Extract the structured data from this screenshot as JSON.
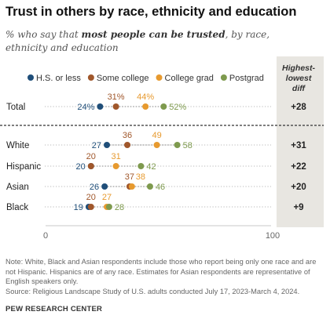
{
  "title": "Trust in others by race, ethnicity and education",
  "subtitle_pre": "% who say that ",
  "subtitle_bold": "most people can be trusted",
  "subtitle_post": ", by race, ethnicity and education",
  "diff_header": [
    "Highest-",
    "lowest",
    "diff"
  ],
  "colors": {
    "hs": "#1f4e79",
    "some_college": "#a0572b",
    "college_grad": "#e79a2f",
    "postgrad": "#7e9a4e",
    "diff_panel": "#e8e6e1",
    "dots": "#b8b8b8"
  },
  "chart_data": {
    "type": "scatter",
    "title": "Trust in others by race, ethnicity and education",
    "xlim": [
      0,
      100
    ],
    "x_ticks": [
      0,
      100
    ],
    "legend_position": "top",
    "categories": [
      "Total",
      "White",
      "Hispanic",
      "Asian",
      "Black"
    ],
    "series": [
      {
        "name": "H.S. or less",
        "key": "hs",
        "values": [
          24,
          27,
          20,
          26,
          19
        ]
      },
      {
        "name": "Some college",
        "key": "some_college",
        "values": [
          31,
          36,
          20,
          37,
          20
        ]
      },
      {
        "name": "College grad",
        "key": "college_grad",
        "values": [
          44,
          49,
          31,
          38,
          27
        ]
      },
      {
        "name": "Postgrad",
        "key": "postgrad",
        "values": [
          52,
          58,
          42,
          46,
          28
        ]
      }
    ],
    "value_labels": {
      "Total": [
        "24%",
        "31%",
        "44%",
        "52%"
      ],
      "White": [
        "27",
        "36",
        "49",
        "58"
      ],
      "Hispanic": [
        "20",
        "20",
        "31",
        "42"
      ],
      "Asian": [
        "26",
        "37",
        "38",
        "46"
      ],
      "Black": [
        "19",
        "20",
        "27",
        "28"
      ]
    },
    "diff": [
      "+28",
      "+31",
      "+22",
      "+20",
      "+9"
    ]
  },
  "note": "Note: White, Black and Asian respondents include those who report being only one race and are not Hispanic. Hispanics are of any race. Estimates for Asian respondents are representative of English speakers only.",
  "source": "Source: Religious Landscape Study of U.S. adults conducted July 17, 2023-March 4, 2024.",
  "brand": "PEW RESEARCH CENTER"
}
